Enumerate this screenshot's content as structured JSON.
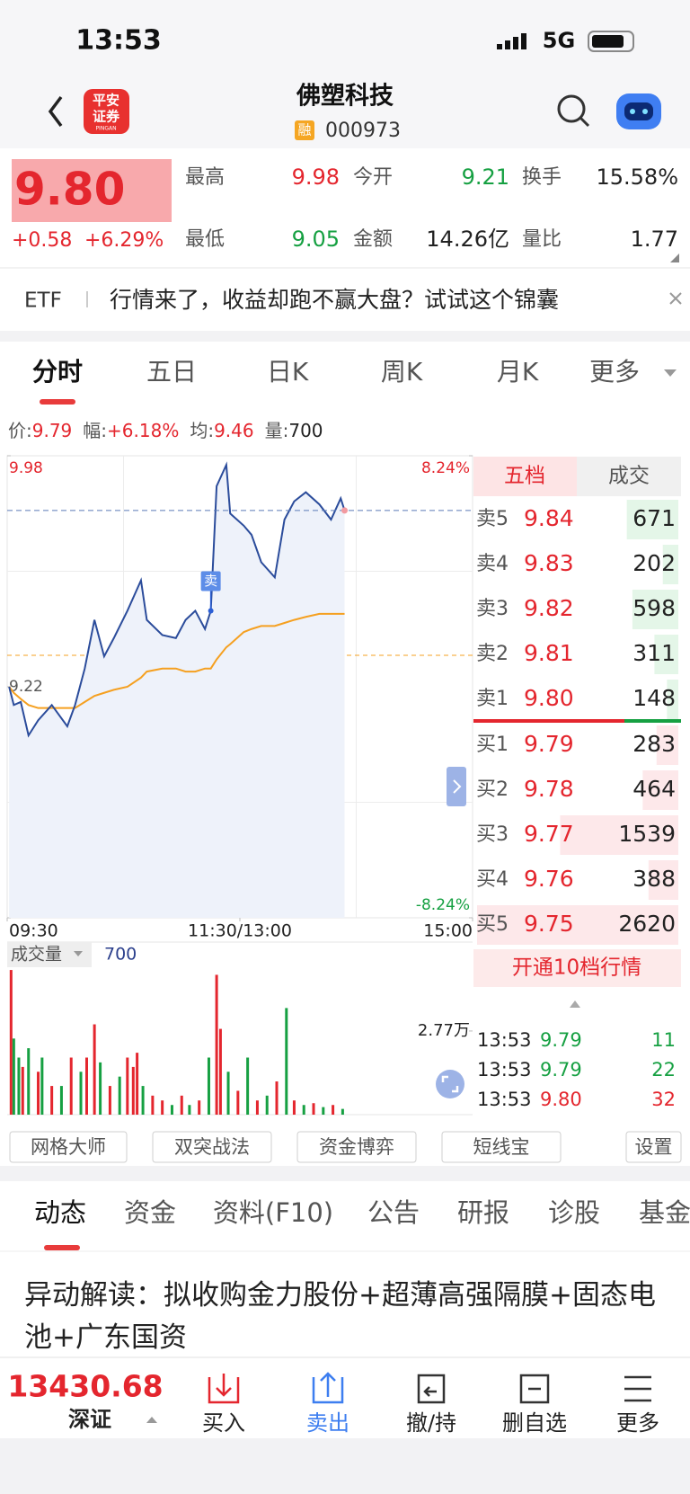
{
  "status_bar": {
    "time": "13:53",
    "network": "5G"
  },
  "header": {
    "logo_lines": [
      "平安",
      "证券"
    ],
    "logo_sub": "PINGAN",
    "name": "佛塑科技",
    "badge": "融",
    "code": "000973"
  },
  "quote": {
    "price": "9.80",
    "change": "+0.58",
    "change_pct": "+6.29%",
    "stats": [
      {
        "label": "最高",
        "value": "9.98",
        "color": "#e4262e"
      },
      {
        "label": "今开",
        "value": "9.21",
        "color": "#16a042"
      },
      {
        "label": "换手",
        "value": "15.58%",
        "color": "#222222"
      },
      {
        "label": "最低",
        "value": "9.05",
        "color": "#16a042"
      },
      {
        "label": "金额",
        "value": "14.26亿",
        "color": "#222222"
      },
      {
        "label": "量比",
        "value": "1.77",
        "color": "#222222"
      }
    ]
  },
  "banner": {
    "tag": "ETF",
    "text": "行情来了，收益却跑不赢大盘？试试这个锦囊"
  },
  "chart_tabs": [
    "分时",
    "五日",
    "日K",
    "周K",
    "月K",
    "更多"
  ],
  "info": [
    {
      "label": "价:",
      "value": "9.79",
      "color": "#e4262e"
    },
    {
      "label": "幅:",
      "value": "+6.18%",
      "color": "#e4262e"
    },
    {
      "label": "均:",
      "value": "9.46",
      "color": "#e4262e"
    },
    {
      "label": "量:",
      "value": "700",
      "color": "#222222"
    }
  ],
  "chart_data": [
    {
      "type": "line",
      "x": [
        1,
        3.4,
        7,
        11,
        16,
        23,
        31,
        35,
        40,
        45,
        50,
        55,
        62,
        69,
        72,
        80,
        87,
        92,
        97,
        102,
        105,
        108,
        113,
        115,
        122,
        126,
        131,
        138,
        143,
        148,
        154,
        161,
        167,
        172,
        174
      ],
      "series": [
        {
          "color": "#2b4c9b",
          "values": [
            9.22,
            9.16,
            9.17,
            9.06,
            9.11,
            9.16,
            9.09,
            9.16,
            9.28,
            9.44,
            9.32,
            9.38,
            9.47,
            9.57,
            9.44,
            9.39,
            9.38,
            9.44,
            9.47,
            9.41,
            9.47,
            9.88,
            9.95,
            9.79,
            9.75,
            9.72,
            9.63,
            9.58,
            9.77,
            9.83,
            9.86,
            9.82,
            9.77,
            9.84,
            9.8
          ]
        },
        {
          "color": "#f5a020",
          "values": [
            9.22,
            9.2,
            9.18,
            9.16,
            9.15,
            9.15,
            9.15,
            9.15,
            9.17,
            9.19,
            9.2,
            9.21,
            9.22,
            9.25,
            9.27,
            9.28,
            9.28,
            9.27,
            9.27,
            9.28,
            9.28,
            9.31,
            9.35,
            9.36,
            9.4,
            9.41,
            9.42,
            9.42,
            9.43,
            9.44,
            9.45,
            9.46,
            9.46,
            9.46,
            9.46
          ]
        }
      ],
      "xlim": [
        0,
        240
      ],
      "xticks": [
        {
          "value": 0,
          "label": "09:30"
        },
        {
          "value": 120,
          "label": "11:30/13:00"
        },
        {
          "value": 240,
          "label": "15:00"
        }
      ],
      "ylim": [
        8.46,
        9.98
      ],
      "yticks": [
        9.98,
        9.22,
        8.46
      ],
      "y2lim": [
        -8.24,
        8.24
      ],
      "y2ticks": [
        {
          "value": 8.24,
          "label": "8.24%"
        },
        {
          "value": -8.24,
          "label": "-8.24%"
        }
      ],
      "annotations": [
        {
          "label": "卖",
          "x": 105,
          "y": 9.47
        }
      ]
    },
    {
      "type": "bar",
      "title": "成交量",
      "current": "700",
      "x": [
        2,
        3.4,
        6,
        8,
        11,
        16,
        18,
        23,
        28,
        33,
        38,
        41,
        45,
        48,
        53,
        58,
        62,
        65,
        67,
        70,
        75,
        80,
        85,
        90,
        94,
        99,
        104,
        108,
        110,
        114,
        119,
        124,
        129,
        134,
        139,
        144,
        148,
        153,
        158,
        163,
        168,
        173
      ],
      "values": [
        47900,
        25200,
        18900,
        15800,
        22000,
        14200,
        18900,
        9500,
        9500,
        18900,
        14200,
        18900,
        29900,
        17300,
        9500,
        12600,
        18900,
        15800,
        20500,
        9500,
        6300,
        4700,
        3200,
        6300,
        3200,
        4700,
        18900,
        46300,
        28400,
        14200,
        7900,
        18900,
        4700,
        6300,
        11000,
        35300,
        4700,
        3200,
        3800,
        2500,
        3200,
        1900
      ],
      "colors": [
        "#e4262e",
        "#16a042",
        "#16a042",
        "#e4262e",
        "#16a042",
        "#e4262e",
        "#16a042",
        "#e4262e",
        "#16a042",
        "#e4262e",
        "#16a042",
        "#e4262e",
        "#e4262e",
        "#16a042",
        "#e4262e",
        "#16a042",
        "#e4262e",
        "#e4262e",
        "#e4262e",
        "#16a042",
        "#e4262e",
        "#e4262e",
        "#16a042",
        "#e4262e",
        "#16a042",
        "#e4262e",
        "#16a042",
        "#e4262e",
        "#e4262e",
        "#16a042",
        "#e4262e",
        "#16a042",
        "#e4262e",
        "#16a042",
        "#e4262e",
        "#16a042",
        "#e4262e",
        "#16a042",
        "#e4262e",
        "#16a042",
        "#e4262e",
        "#16a042"
      ],
      "xlim": [
        0,
        240
      ],
      "ylim": [
        0,
        50000
      ],
      "yticks": [
        {
          "value": 27700,
          "label": "2.77万"
        }
      ]
    }
  ],
  "order_book": {
    "tabs": [
      "五档",
      "成交"
    ],
    "asks": [
      {
        "label": "卖5",
        "price": "9.84",
        "volume": 671
      },
      {
        "label": "卖4",
        "price": "9.83",
        "volume": 202
      },
      {
        "label": "卖3",
        "price": "9.82",
        "volume": 598
      },
      {
        "label": "卖2",
        "price": "9.81",
        "volume": 311
      },
      {
        "label": "卖1",
        "price": "9.80",
        "volume": 148
      }
    ],
    "bids": [
      {
        "label": "买1",
        "price": "9.79",
        "volume": 283
      },
      {
        "label": "买2",
        "price": "9.78",
        "volume": 464
      },
      {
        "label": "买3",
        "price": "9.77",
        "volume": 1539
      },
      {
        "label": "买4",
        "price": "9.76",
        "volume": 388
      },
      {
        "label": "买5",
        "price": "9.75",
        "volume": 2620
      }
    ],
    "upgrade": "开通10档行情",
    "trades": [
      {
        "time": "13:53",
        "price": "9.79",
        "volume": "11",
        "color": "#16a042"
      },
      {
        "time": "13:53",
        "price": "9.79",
        "volume": "22",
        "color": "#16a042"
      },
      {
        "time": "13:53",
        "price": "9.80",
        "volume": "32",
        "color": "#e4262e"
      }
    ]
  },
  "tools": [
    "网格大师",
    "双突战法",
    "资金博弈",
    "短线宝",
    "设置"
  ],
  "section_tabs": [
    "动态",
    "资金",
    "资料(F10)",
    "公告",
    "研报",
    "诊股",
    "基金"
  ],
  "news": "异动解读：拟收购金力股份+超薄高强隔膜+固态电池+广东国资",
  "bottom_bar": {
    "index_value": "13430.68",
    "index_name": "深证",
    "actions": [
      "买入",
      "卖出",
      "撤/持",
      "删自选",
      "更多"
    ]
  }
}
